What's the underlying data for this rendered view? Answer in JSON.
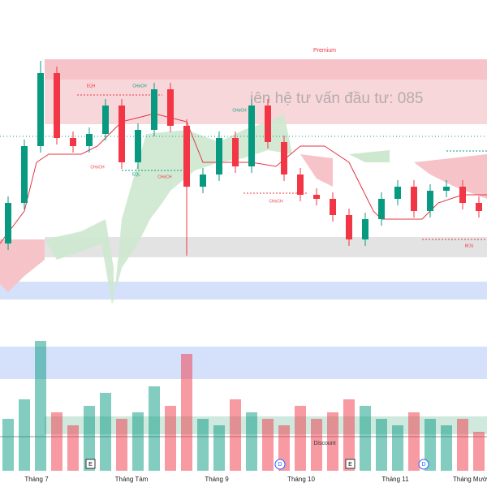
{
  "chart_data": {
    "type": "candlestick",
    "open": [
      120,
      170,
      240,
      330,
      250,
      240,
      255,
      290,
      220,
      260,
      310,
      265,
      190,
      205,
      250,
      215,
      290,
      245,
      205,
      180,
      175,
      155,
      125,
      150,
      175,
      190,
      160,
      185,
      190,
      170
    ],
    "high": [
      178,
      248,
      345,
      338,
      258,
      263,
      298,
      298,
      268,
      318,
      318,
      273,
      213,
      258,
      258,
      298,
      298,
      253,
      213,
      188,
      183,
      163,
      158,
      183,
      198,
      198,
      193,
      198,
      198,
      178
    ],
    "low": [
      112,
      162,
      232,
      242,
      232,
      232,
      247,
      212,
      212,
      252,
      257,
      105,
      182,
      197,
      207,
      207,
      237,
      197,
      172,
      167,
      147,
      117,
      117,
      142,
      167,
      152,
      152,
      177,
      162,
      152
    ],
    "close": [
      170,
      240,
      330,
      250,
      240,
      255,
      290,
      220,
      260,
      310,
      265,
      190,
      205,
      250,
      215,
      290,
      245,
      205,
      180,
      175,
      155,
      125,
      150,
      175,
      190,
      160,
      185,
      190,
      170,
      160
    ],
    "volume": [
      40,
      55,
      100,
      45,
      35,
      50,
      60,
      40,
      45,
      65,
      50,
      90,
      40,
      35,
      55,
      45,
      40,
      35,
      50,
      40,
      45,
      55,
      50,
      40,
      35,
      45,
      40,
      35,
      40,
      30
    ],
    "ylim": [
      0,
      420
    ],
    "y2lim": [
      0,
      100
    ],
    "up_color": "#089981",
    "down_color": "#f23645",
    "months": [
      "Tháng 7",
      "Tháng Tám",
      "Tháng 9",
      "Tháng 10",
      "Tháng 11",
      "Tháng Mườ"
    ],
    "zones": {
      "premium": "Premium",
      "discount": "Discount"
    },
    "structure_labels": [
      "EQH",
      "CHoCH",
      "CHoCH",
      "CHoCH",
      "EQL",
      "CHoCH",
      "CHoCH",
      "BOS"
    ],
    "events": [
      "E",
      "D",
      "E",
      "D"
    ],
    "watermark": "iên hệ tư vấn đầu tư:  085"
  }
}
